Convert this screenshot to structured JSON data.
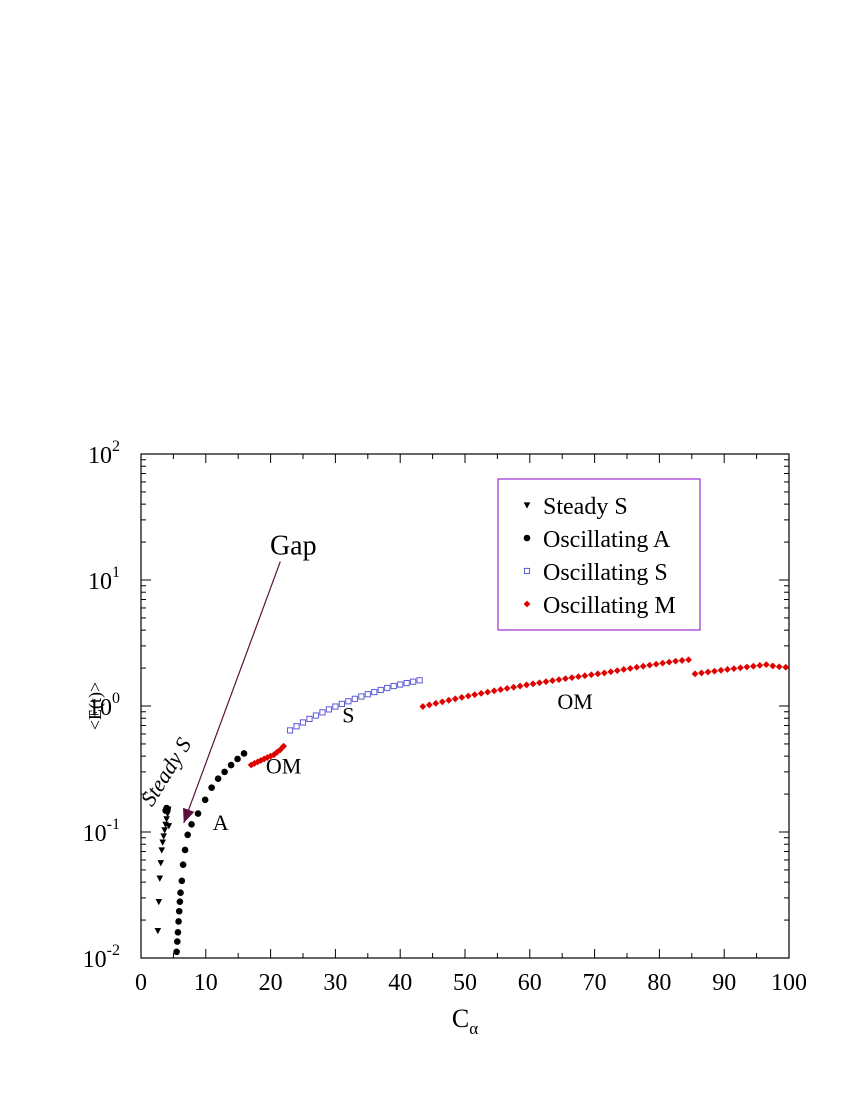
{
  "chart_data": {
    "type": "scatter",
    "title": "",
    "xlabel": "C",
    "xlabel_sub": "α",
    "ylabel": "<E(t)>",
    "y_scale": "log",
    "xlim": [
      0,
      100
    ],
    "ylim": [
      0.01,
      100
    ],
    "x_ticks": [
      "0",
      "10",
      "20",
      "30",
      "40",
      "50",
      "60",
      "70",
      "80",
      "90",
      "100"
    ],
    "y_ticks": [
      {
        "base": "10",
        "exp": "-2"
      },
      {
        "base": "10",
        "exp": "-1"
      },
      {
        "base": "10",
        "exp": "0"
      },
      {
        "base": "10",
        "exp": "1"
      },
      {
        "base": "10",
        "exp": "2"
      }
    ],
    "legend_position": "top-right",
    "legend_border_color": "#9b30d0",
    "series": [
      {
        "name": "Steady S",
        "marker": "triangle-down",
        "color": "#000000",
        "x": [
          2.6,
          2.75,
          2.9,
          3.05,
          3.2,
          3.35,
          3.5,
          3.65,
          3.8,
          3.95,
          4.1,
          4.2,
          4.3
        ],
        "y": [
          0.0165,
          0.028,
          0.043,
          0.057,
          0.072,
          0.083,
          0.093,
          0.104,
          0.115,
          0.127,
          0.14,
          0.152,
          0.112
        ]
      },
      {
        "name": "Oscillating A",
        "marker": "circle",
        "color": "#000000",
        "x": [
          3.8,
          3.95,
          4.1,
          5.5,
          5.6,
          5.7,
          5.8,
          5.9,
          6.0,
          6.1,
          6.3,
          6.5,
          6.8,
          7.2,
          7.8,
          8.8,
          9.9,
          10.9,
          11.9,
          12.9,
          13.9,
          14.9,
          15.9
        ],
        "y": [
          0.148,
          0.155,
          0.152,
          0.0112,
          0.0135,
          0.016,
          0.0195,
          0.0235,
          0.028,
          0.033,
          0.041,
          0.055,
          0.072,
          0.095,
          0.115,
          0.14,
          0.18,
          0.225,
          0.265,
          0.3,
          0.34,
          0.38,
          0.42
        ]
      },
      {
        "name": "Oscillating S",
        "marker": "square-open",
        "color": "#5b5bd6",
        "x": [
          23,
          24,
          25,
          26,
          27,
          28,
          29,
          30,
          31,
          32,
          33,
          34,
          35,
          36,
          37,
          38,
          39,
          40,
          41,
          42,
          43
        ],
        "y": [
          0.64,
          0.69,
          0.74,
          0.79,
          0.84,
          0.89,
          0.94,
          0.99,
          1.04,
          1.09,
          1.14,
          1.19,
          1.24,
          1.29,
          1.34,
          1.39,
          1.44,
          1.48,
          1.52,
          1.56,
          1.6
        ]
      },
      {
        "name": "Oscillating M",
        "marker": "diamond",
        "color": "#e00000",
        "x": [
          17,
          17.5,
          18,
          18.5,
          19,
          19.5,
          20,
          20.5,
          21,
          21.5,
          22,
          43.5,
          44.5,
          45.5,
          46.5,
          47.5,
          48.5,
          49.5,
          50.5,
          51.5,
          52.5,
          53.5,
          54.5,
          55.5,
          56.5,
          57.5,
          58.5,
          59.5,
          60.5,
          61.5,
          62.5,
          63.5,
          64.5,
          65.5,
          66.5,
          67.5,
          68.5,
          69.5,
          70.5,
          71.5,
          72.5,
          73.5,
          74.5,
          75.5,
          76.5,
          77.5,
          78.5,
          79.5,
          80.5,
          81.5,
          82.5,
          83.5,
          84.5,
          85.5,
          86.5,
          87.5,
          88.5,
          89.5,
          90.5,
          91.5,
          92.5,
          93.5,
          94.5,
          95.5,
          96.5,
          97.5,
          98.5,
          99.5
        ],
        "y": [
          0.34,
          0.35,
          0.36,
          0.37,
          0.38,
          0.39,
          0.4,
          0.41,
          0.43,
          0.45,
          0.48,
          0.99,
          1.02,
          1.05,
          1.08,
          1.11,
          1.14,
          1.17,
          1.2,
          1.23,
          1.26,
          1.29,
          1.32,
          1.35,
          1.38,
          1.41,
          1.44,
          1.47,
          1.5,
          1.53,
          1.56,
          1.59,
          1.62,
          1.65,
          1.68,
          1.71,
          1.74,
          1.77,
          1.8,
          1.83,
          1.87,
          1.91,
          1.95,
          1.99,
          2.03,
          2.07,
          2.11,
          2.15,
          2.19,
          2.23,
          2.27,
          2.3,
          2.33,
          1.8,
          1.83,
          1.86,
          1.89,
          1.92,
          1.95,
          1.98,
          2.01,
          2.04,
          2.07,
          2.1,
          2.13,
          2.08,
          2.05,
          2.03
        ]
      }
    ],
    "annotations": [
      {
        "text": "Gap",
        "x": 23.5,
        "y": 16,
        "size": "large"
      },
      {
        "text": "Steady S",
        "x": 4.8,
        "y": 0.28,
        "rotate": -58,
        "italic": true
      },
      {
        "text": "A",
        "x": 12.3,
        "y": 0.104
      },
      {
        "text": "OM",
        "x": 22,
        "y": 0.29
      },
      {
        "text": "S",
        "x": 32,
        "y": 0.74
      },
      {
        "text": "OM",
        "x": 67,
        "y": 0.95
      }
    ],
    "arrow": {
      "color": "#5c1040",
      "from": [
        21.5,
        14
      ],
      "to": [
        6.6,
        0.118
      ]
    }
  }
}
